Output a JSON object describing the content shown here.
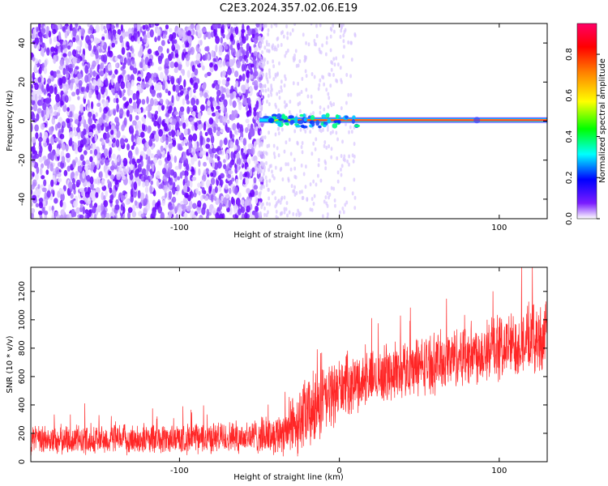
{
  "title": "C2E3.2024.357.02.06.E19",
  "chart_data": [
    {
      "type": "heatmap",
      "title": "C2E3.2024.357.02.06.E19",
      "xlabel": "Height of straight line (km)",
      "ylabel": "Frequency (Hz)",
      "xlim": [
        -193,
        130
      ],
      "ylim": [
        -50,
        50
      ],
      "x_ticks": [
        -100,
        0,
        100
      ],
      "y_ticks": [
        -40,
        -20,
        0,
        20,
        40
      ],
      "x_tick_labels": [
        "-100",
        "0",
        "100"
      ],
      "y_tick_labels": [
        "-40",
        "-20",
        "0",
        "20",
        "40"
      ],
      "colorbar": {
        "label": "Normalized spectral amplitude",
        "range": [
          0,
          0.95
        ],
        "ticks": [
          0,
          0.2,
          0.4,
          0.6,
          0.8
        ],
        "tick_labels": [
          "0.0",
          "0.2",
          "0.4",
          "0.6",
          "0.8"
        ],
        "colormap": [
          "#ffffff",
          "#6a00ff",
          "#0000ff",
          "#00ffff",
          "#00ff00",
          "#ffff00",
          "#ff8000",
          "#ff0000",
          "#ff0066"
        ]
      },
      "regions": [
        {
          "x_range": [
            -193,
            -50
          ],
          "description_values": {
            "amplitude_range": [
              0,
              0.15
            ]
          }
        },
        {
          "x_range": [
            -50,
            130
          ],
          "line_frequency": 0.5,
          "line_amplitude": 0.9
        }
      ]
    },
    {
      "type": "line",
      "xlabel": "Height of straight line (km)",
      "ylabel": "SNR (10 * v/v)",
      "xlim": [
        -193,
        130
      ],
      "ylim": [
        0,
        1370
      ],
      "x_ticks": [
        -100,
        0,
        100
      ],
      "y_ticks": [
        0,
        200,
        400,
        600,
        800,
        1000,
        1200
      ],
      "x_tick_labels": [
        "-100",
        "0",
        "100"
      ],
      "y_tick_labels": [
        "0",
        "200",
        "400",
        "600",
        "800",
        "1000",
        "1200"
      ],
      "series": [
        {
          "color": "#ff0000",
          "trend_x": [
            -193,
            -150,
            -100,
            -60,
            -40,
            -30,
            -20,
            -10,
            0,
            20,
            40,
            60,
            80,
            100,
            120,
            130
          ],
          "trend_y": [
            150,
            155,
            160,
            175,
            190,
            250,
            330,
            420,
            520,
            590,
            650,
            700,
            760,
            800,
            860,
            880
          ],
          "noise_amplitude": [
            100,
            100,
            100,
            110,
            130,
            200,
            260,
            250,
            200,
            180,
            190,
            200,
            210,
            220,
            230,
            230
          ]
        }
      ]
    }
  ]
}
